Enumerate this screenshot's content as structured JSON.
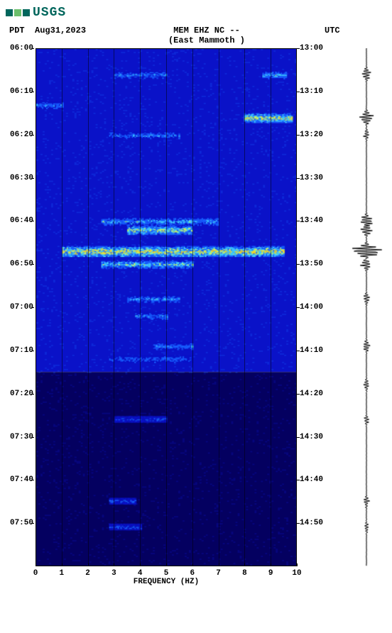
{
  "logo": {
    "text": "USGS",
    "color": "#00665c",
    "squares": [
      "#00665c",
      "#6cbf6c",
      "#00665c"
    ]
  },
  "header": {
    "left_tz": "PDT",
    "date": "Aug31,2023",
    "station_line1": "MEM EHZ NC --",
    "station_line2": "(East Mammoth )",
    "right_tz": "UTC"
  },
  "spectrogram": {
    "type": "spectrogram",
    "x_min": 0,
    "x_max": 10,
    "x_ticks": [
      0,
      1,
      2,
      3,
      4,
      5,
      6,
      7,
      8,
      9,
      10
    ],
    "x_label": "FREQUENCY (HZ)",
    "left_y_ticks": [
      "06:00",
      "06:10",
      "06:20",
      "06:30",
      "06:40",
      "06:50",
      "07:00",
      "07:10",
      "07:20",
      "07:30",
      "07:40",
      "07:50"
    ],
    "right_y_ticks": [
      "13:00",
      "13:10",
      "13:20",
      "13:30",
      "13:40",
      "13:50",
      "14:00",
      "14:10",
      "14:20",
      "14:30",
      "14:40",
      "14:50"
    ],
    "y_total_minutes": 120,
    "region_split_minute": 75,
    "colors": {
      "bg_top": "#0a12c8",
      "bg_bottom": "#040060",
      "low": "#0a12c8",
      "mid": "#1860ff",
      "high": "#40d0ff",
      "peak": "#d0ff60",
      "hot": "#ffe020",
      "grid": "#000000"
    },
    "events": [
      {
        "t": 6,
        "f0": 3.0,
        "f1": 5.0,
        "intensity": 0.5
      },
      {
        "t": 6,
        "f0": 8.7,
        "f1": 9.6,
        "intensity": 0.6
      },
      {
        "t": 16,
        "f0": 8.0,
        "f1": 9.8,
        "intensity": 0.9
      },
      {
        "t": 20,
        "f0": 2.8,
        "f1": 5.5,
        "intensity": 0.5
      },
      {
        "t": 13,
        "f0": 0.0,
        "f1": 1.0,
        "intensity": 0.5
      },
      {
        "t": 40,
        "f0": 2.5,
        "f1": 7.0,
        "intensity": 0.6
      },
      {
        "t": 42,
        "f0": 3.5,
        "f1": 6.0,
        "intensity": 0.8
      },
      {
        "t": 47,
        "f0": 1.0,
        "f1": 9.5,
        "intensity": 0.95
      },
      {
        "t": 50,
        "f0": 2.5,
        "f1": 6.0,
        "intensity": 0.7
      },
      {
        "t": 58,
        "f0": 3.5,
        "f1": 5.5,
        "intensity": 0.55
      },
      {
        "t": 62,
        "f0": 3.8,
        "f1": 5.0,
        "intensity": 0.5
      },
      {
        "t": 69,
        "f0": 4.5,
        "f1": 6.0,
        "intensity": 0.5
      },
      {
        "t": 72,
        "f0": 2.8,
        "f1": 6.0,
        "intensity": 0.45
      },
      {
        "t": 86,
        "f0": 3.0,
        "f1": 5.0,
        "intensity": 0.35
      },
      {
        "t": 105,
        "f0": 2.8,
        "f1": 3.8,
        "intensity": 0.4
      },
      {
        "t": 111,
        "f0": 2.8,
        "f1": 4.0,
        "intensity": 0.4
      }
    ]
  },
  "seismogram": {
    "color": "#000000",
    "baseline": 0.5,
    "events": [
      {
        "t": 6,
        "amp": 0.25
      },
      {
        "t": 16,
        "amp": 0.4
      },
      {
        "t": 20,
        "amp": 0.15
      },
      {
        "t": 40,
        "amp": 0.35
      },
      {
        "t": 42,
        "amp": 0.3
      },
      {
        "t": 47,
        "amp": 0.95
      },
      {
        "t": 50,
        "amp": 0.3
      },
      {
        "t": 58,
        "amp": 0.2
      },
      {
        "t": 69,
        "amp": 0.2
      },
      {
        "t": 78,
        "amp": 0.15
      },
      {
        "t": 86,
        "amp": 0.12
      },
      {
        "t": 105,
        "amp": 0.15
      },
      {
        "t": 111,
        "amp": 0.12
      }
    ]
  }
}
